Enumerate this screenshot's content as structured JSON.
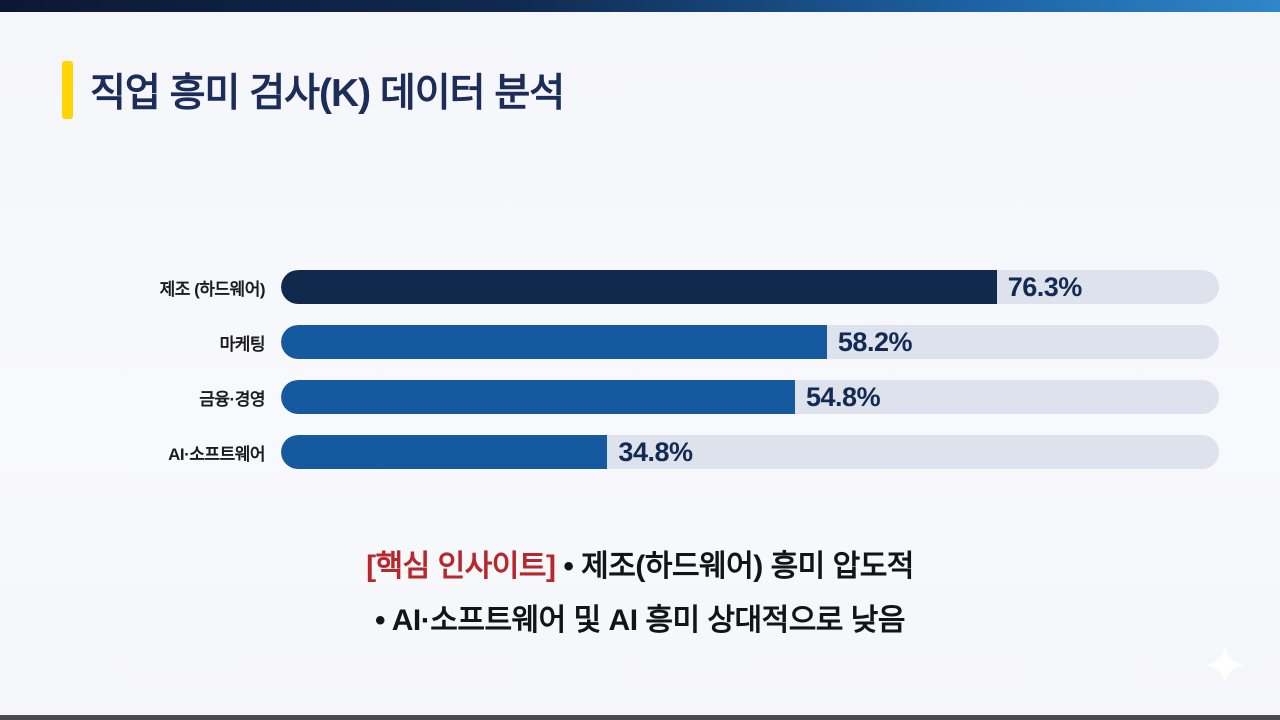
{
  "header": {
    "title": "직업 흥미 검사(K) 데이터 분석",
    "accent_color": "#ffd400",
    "title_color": "#1d2d5a"
  },
  "chart_data": {
    "type": "bar",
    "orientation": "horizontal",
    "title": "",
    "xlabel": "",
    "ylabel": "",
    "xlim": [
      0,
      100
    ],
    "grid": false,
    "legend": false,
    "categories": [
      "제조 (하드웨어)",
      "마케팅",
      "금융·경영",
      "AI·소프트웨어"
    ],
    "values": [
      76.3,
      58.2,
      54.8,
      34.8
    ],
    "value_labels": [
      "76.3%",
      "58.2%",
      "54.8%",
      "34.8%"
    ],
    "bar_colors": [
      "#12294e",
      "#15599e",
      "#15599e",
      "#15599e"
    ],
    "track_color": "#dde2ec",
    "value_label_color": "#132a52",
    "category_label_color": "#1c1c1c"
  },
  "insight": {
    "highlight": "[핵심 인사이트]",
    "line1_rest": " • 제조(하드웨어) 흥미 압도적",
    "line2": "• AI·소프트웨어 및 AI 흥미 상대적으로 낮음",
    "highlight_color": "#b8272c"
  },
  "decor": {
    "top_bar_gradient_start": "#0b1834",
    "top_bar_gradient_end": "#2f86c8",
    "bottom_strip_color": "#4a4a4a",
    "sparkle_icon": "four-point-star",
    "sparkle_color": "#ffffff"
  }
}
